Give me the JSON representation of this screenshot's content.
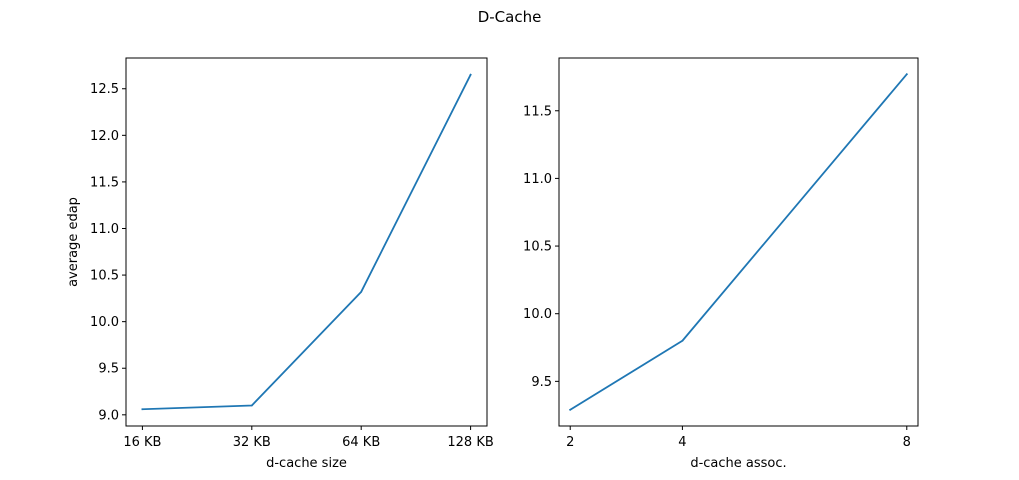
{
  "figure": {
    "suptitle": "D-Cache",
    "line_color": "#1f77b4"
  },
  "chart_data": [
    {
      "type": "line",
      "title": "",
      "xlabel": "d-cache size",
      "ylabel": "average edap",
      "categories": [
        "16 KB",
        "32 KB",
        "64 KB",
        "128 KB"
      ],
      "series": [
        {
          "values": [
            9.06,
            9.1,
            10.32,
            12.65
          ]
        }
      ],
      "ylim": [
        8.88,
        12.83
      ],
      "yticks": [
        9.0,
        9.5,
        10.0,
        10.5,
        11.0,
        11.5,
        12.0,
        12.5
      ],
      "ytick_labels": [
        "9.0",
        "9.5",
        "10.0",
        "10.5",
        "11.0",
        "11.5",
        "12.0",
        "12.5"
      ],
      "grid": false,
      "legend": "none"
    },
    {
      "type": "line",
      "title": "",
      "xlabel": "d-cache assoc.",
      "ylabel": "",
      "categories": [
        "2",
        "4",
        "8"
      ],
      "x": [
        2,
        4,
        8
      ],
      "series": [
        {
          "values": [
            9.29,
            9.8,
            11.77
          ]
        }
      ],
      "xlim": [
        1.8,
        8.2
      ],
      "ylim": [
        9.17,
        11.89
      ],
      "yticks": [
        9.5,
        10.0,
        10.5,
        11.0,
        11.5
      ],
      "ytick_labels": [
        "9.5",
        "10.0",
        "10.5",
        "11.0",
        "11.5"
      ],
      "grid": false,
      "legend": "none"
    }
  ]
}
